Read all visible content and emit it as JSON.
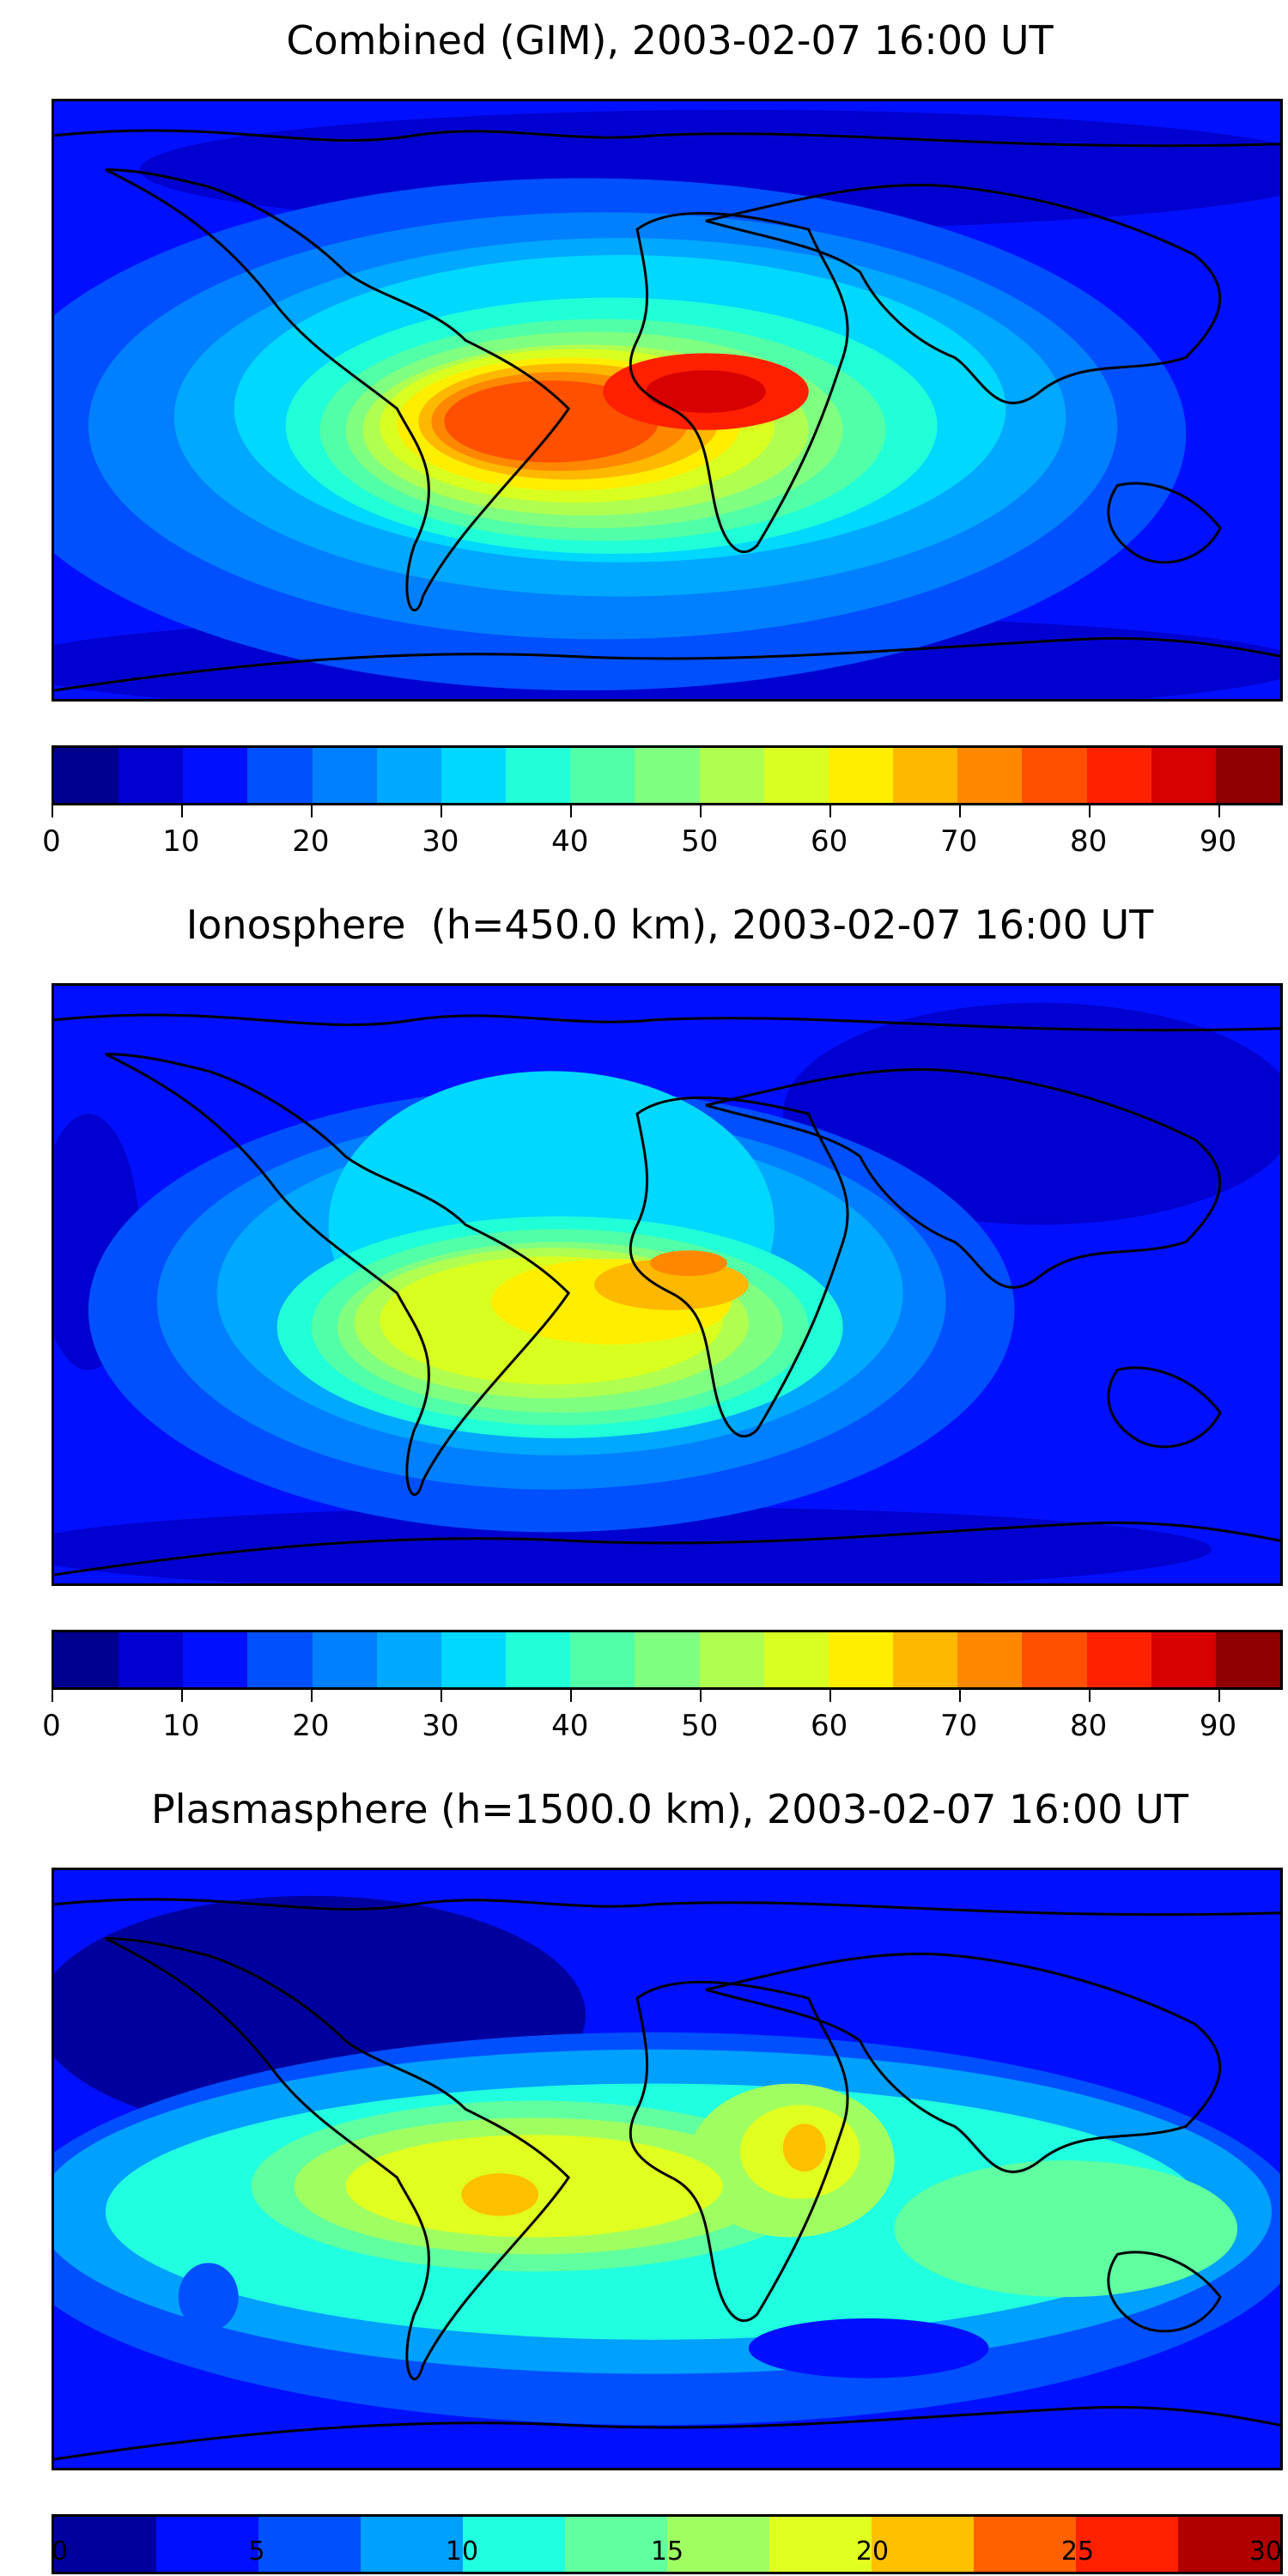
{
  "panels": [
    {
      "title": "Combined (GIM), 2003-02-07 16:00 UT",
      "colorbar": {
        "min": 0,
        "max": 95,
        "step": 5,
        "ticks": [
          "0",
          "10",
          "20",
          "30",
          "40",
          "50",
          "60",
          "70",
          "80",
          "90"
        ],
        "tick_values": [
          0,
          10,
          20,
          30,
          40,
          50,
          60,
          70,
          80,
          90
        ],
        "colors": [
          "#00008f",
          "#0000d0",
          "#0010ff",
          "#0050ff",
          "#0080ff",
          "#00a8ff",
          "#00d8ff",
          "#20ffd8",
          "#50ffa8",
          "#80ff80",
          "#b0ff50",
          "#d8ff20",
          "#ffee00",
          "#ffb800",
          "#ff8800",
          "#ff5000",
          "#ff2000",
          "#d80000",
          "#900000"
        ]
      }
    },
    {
      "title": "Ionosphere  (h=450.0 km), 2003-02-07 16:00 UT",
      "colorbar": {
        "min": 0,
        "max": 95,
        "step": 5,
        "ticks": [
          "0",
          "10",
          "20",
          "30",
          "40",
          "50",
          "60",
          "70",
          "80",
          "90"
        ],
        "tick_values": [
          0,
          10,
          20,
          30,
          40,
          50,
          60,
          70,
          80,
          90
        ],
        "colors": [
          "#00008f",
          "#0000d0",
          "#0010ff",
          "#0050ff",
          "#0080ff",
          "#00a8ff",
          "#00d8ff",
          "#20ffd8",
          "#50ffa8",
          "#80ff80",
          "#b0ff50",
          "#d8ff20",
          "#ffee00",
          "#ffb800",
          "#ff8800",
          "#ff5000",
          "#ff2000",
          "#d80000",
          "#900000"
        ]
      }
    },
    {
      "title": "Plasmasphere (h=1500.0 km), 2003-02-07 16:00 UT",
      "colorbar": {
        "min": 0,
        "max": 30,
        "step": 2.5,
        "ticks": [
          "0",
          "5",
          "10",
          "15",
          "20",
          "25",
          "30"
        ],
        "tick_values": [
          0,
          5,
          10,
          15,
          20,
          25,
          30
        ],
        "colors": [
          "#00009f",
          "#0010ff",
          "#0050ff",
          "#00a0ff",
          "#20ffe0",
          "#60ffa0",
          "#a0ff60",
          "#e0ff20",
          "#ffc000",
          "#ff6000",
          "#ff2000",
          "#b00000"
        ]
      }
    }
  ]
}
